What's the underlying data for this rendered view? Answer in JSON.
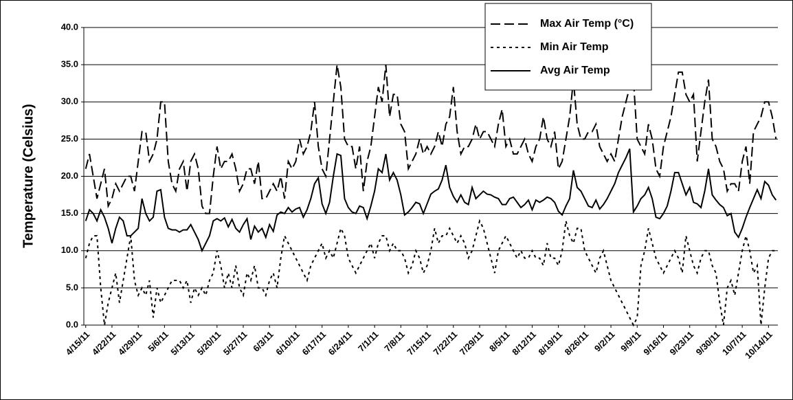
{
  "chart_data": {
    "type": "line",
    "y_label": "Temperature (Celsius)",
    "categories": [
      "4/15/11",
      null,
      null,
      null,
      null,
      null,
      null,
      "4/22/11",
      null,
      null,
      null,
      null,
      null,
      null,
      "4/29/11",
      null,
      null,
      null,
      null,
      null,
      null,
      "5/6/11",
      null,
      null,
      null,
      null,
      null,
      null,
      "5/13/11",
      null,
      null,
      null,
      null,
      null,
      null,
      "5/20/11",
      null,
      null,
      null,
      null,
      null,
      null,
      "5/27/11",
      null,
      null,
      null,
      null,
      null,
      null,
      "6/3/11",
      null,
      null,
      null,
      null,
      null,
      null,
      "6/10/11",
      null,
      null,
      null,
      null,
      null,
      null,
      "6/17/11",
      null,
      null,
      null,
      null,
      null,
      null,
      "6/24/11",
      null,
      null,
      null,
      null,
      null,
      null,
      "7/1/11",
      null,
      null,
      null,
      null,
      null,
      null,
      "7/8/11",
      null,
      null,
      null,
      null,
      null,
      null,
      "7/15/11",
      null,
      null,
      null,
      null,
      null,
      null,
      "7/22/11",
      null,
      null,
      null,
      null,
      null,
      null,
      "7/29/11",
      null,
      null,
      null,
      null,
      null,
      null,
      "8/5/11",
      null,
      null,
      null,
      null,
      null,
      null,
      "8/12/11",
      null,
      null,
      null,
      null,
      null,
      null,
      "8/19/11",
      null,
      null,
      null,
      null,
      null,
      null,
      "8/26/11",
      null,
      null,
      null,
      null,
      null,
      null,
      "9/2/11",
      null,
      null,
      null,
      null,
      null,
      null,
      "9/9/11",
      null,
      null,
      null,
      null,
      null,
      null,
      "9/16/11",
      null,
      null,
      null,
      null,
      null,
      null,
      "9/23/11",
      null,
      null,
      null,
      null,
      null,
      null,
      "9/30/11",
      null,
      null,
      null,
      null,
      null,
      null,
      "10/7/11",
      null,
      null,
      null,
      null,
      null,
      null,
      "10/14/11",
      null,
      null
    ],
    "series": [
      {
        "name": "Max Air Temp (°C)",
        "color": "#000000",
        "style": "dashed",
        "values": [
          21,
          23,
          20,
          17,
          19,
          21,
          16,
          17,
          19,
          18,
          19,
          20,
          20,
          18,
          22,
          26,
          26,
          22,
          23,
          25,
          30,
          30,
          22,
          19,
          18,
          21,
          22,
          18,
          22,
          23,
          21,
          16,
          15,
          15,
          20,
          24,
          21,
          22,
          22,
          23,
          21,
          18,
          19,
          21,
          21,
          19,
          22,
          17,
          17,
          18,
          19,
          18,
          20,
          17,
          22,
          21,
          22,
          25,
          23,
          24,
          26,
          30,
          24,
          21,
          20,
          25,
          30,
          35,
          32,
          25,
          24,
          24,
          21,
          24,
          18,
          22,
          24,
          28,
          32,
          30,
          35,
          28,
          31,
          31,
          27,
          26,
          21,
          22,
          23,
          25,
          23,
          24,
          23,
          24,
          26,
          24,
          27,
          28,
          32,
          26,
          23,
          24,
          24,
          25,
          27,
          25,
          26,
          26,
          25,
          24,
          27,
          29,
          24,
          25,
          23,
          23,
          24,
          25,
          23,
          22,
          24,
          25,
          28,
          25,
          24,
          26,
          21,
          22,
          25,
          28,
          33,
          27,
          25,
          25,
          26,
          26,
          27,
          24,
          23,
          22,
          23,
          22,
          25,
          28,
          30,
          32,
          33,
          25,
          24,
          23,
          27,
          25,
          21,
          20,
          24,
          26,
          28,
          31,
          34,
          34,
          31,
          30,
          31,
          22,
          26,
          30,
          33,
          25,
          24,
          22,
          21,
          18,
          19,
          19,
          18,
          22,
          24,
          19,
          26,
          27,
          28,
          30,
          30,
          28,
          25
        ]
      },
      {
        "name": "Min Air Temp",
        "color": "#000000",
        "style": "dotted",
        "values": [
          9,
          11,
          12,
          12,
          5,
          0,
          3,
          5,
          7,
          3,
          6,
          9,
          12,
          6,
          4,
          5,
          4,
          6,
          1,
          5,
          3,
          4,
          5,
          6,
          6,
          6,
          5,
          6,
          3,
          5,
          4,
          5,
          4,
          6,
          7,
          10,
          8,
          5,
          7,
          5,
          8,
          5,
          4,
          7,
          6,
          8,
          5,
          5,
          4,
          6,
          7,
          5,
          9,
          12,
          11,
          10,
          9,
          8,
          7,
          6,
          8,
          9,
          10,
          11,
          9,
          10,
          9,
          11,
          13,
          12,
          9,
          8,
          7,
          8,
          9,
          10,
          11,
          9,
          11,
          12,
          12,
          10,
          11,
          10,
          10,
          9,
          7,
          8,
          10,
          9,
          7,
          8,
          10,
          13,
          11,
          12,
          12,
          13,
          12,
          11,
          12,
          11,
          9,
          10,
          12,
          14,
          13,
          11,
          9,
          7,
          10,
          11,
          12,
          11,
          10,
          9,
          10,
          9,
          9,
          10,
          9,
          9,
          8,
          11,
          9,
          9,
          8,
          10,
          14,
          12,
          11,
          13,
          13,
          10,
          9,
          8,
          7,
          9,
          10,
          8,
          6,
          5,
          4,
          3,
          2,
          1,
          0,
          1,
          8,
          10,
          13,
          11,
          9,
          8,
          7,
          8,
          9,
          10,
          9,
          7,
          12,
          10,
          8,
          7,
          9,
          10,
          10,
          8,
          7,
          3,
          0,
          5,
          6,
          4,
          7,
          10,
          12,
          10,
          7,
          8,
          0,
          5,
          9,
          10,
          10
        ]
      },
      {
        "name": "Avg Air Temp",
        "color": "#000000",
        "style": "solid",
        "values": [
          14,
          15.5,
          15,
          14,
          15.5,
          14.5,
          13,
          11,
          13,
          14.5,
          14,
          12,
          12,
          12.5,
          13,
          17,
          15,
          14,
          14.5,
          18,
          18.2,
          14.5,
          13,
          12.8,
          12.8,
          12.5,
          12.8,
          12.8,
          13.5,
          12.5,
          11.5,
          10,
          11,
          12,
          14,
          14.3,
          14,
          14.4,
          13.2,
          14.2,
          13,
          12.5,
          13.5,
          14.3,
          11.5,
          13.3,
          12.5,
          13,
          11.8,
          13.5,
          12.6,
          14.8,
          15.2,
          15,
          15.8,
          15.2,
          15.6,
          15.8,
          14.5,
          15.5,
          17,
          19,
          19.8,
          16.3,
          15,
          16.5,
          20,
          23,
          22.8,
          17,
          15.8,
          15.2,
          15,
          16,
          15.8,
          14.3,
          16,
          18,
          21,
          20.5,
          23,
          19.5,
          20.5,
          19.5,
          17.5,
          14.8,
          15.2,
          15.8,
          16.5,
          16.3,
          15,
          16.3,
          17.6,
          18,
          18.3,
          19.5,
          21.5,
          18.5,
          17.3,
          16.5,
          17.5,
          16.5,
          16.2,
          18.5,
          17,
          17.5,
          18,
          17.6,
          17.5,
          17.2,
          17,
          16.2,
          16.2,
          17,
          17.2,
          16.5,
          15.8,
          16.2,
          16.8,
          15.5,
          16.8,
          16.5,
          16.8,
          17.2,
          17,
          16.5,
          15.3,
          14.8,
          16,
          17,
          20.8,
          18.5,
          18,
          17,
          16,
          15.8,
          16.8,
          15.6,
          16.2,
          17,
          18,
          19,
          20.5,
          21.5,
          22.5,
          23.7,
          15.2,
          16,
          17,
          17.5,
          18.5,
          17,
          14.5,
          14.3,
          15,
          16,
          18,
          20.5,
          20.5,
          19,
          17.5,
          18.5,
          16.5,
          16.3,
          15.8,
          18,
          21,
          17.5,
          16.8,
          16.2,
          15.8,
          14.7,
          15,
          12.5,
          11.8,
          13,
          14.5,
          15.8,
          17,
          18.2,
          17,
          19.3,
          18.8,
          17.5,
          16.8
        ]
      }
    ],
    "ylim": [
      0,
      40
    ],
    "yticks": [
      {
        "value": 0,
        "label": "0.0"
      },
      {
        "value": 5,
        "label": "5.0"
      },
      {
        "value": 10,
        "label": "10.0"
      },
      {
        "value": 15,
        "label": "15.0"
      },
      {
        "value": 20,
        "label": "20.0"
      },
      {
        "value": 25,
        "label": "25.0"
      },
      {
        "value": 30,
        "label": "30.0"
      },
      {
        "value": 35,
        "label": "35.0"
      },
      {
        "value": 40,
        "label": "40.0"
      }
    ],
    "grid": true,
    "legend": "top"
  }
}
